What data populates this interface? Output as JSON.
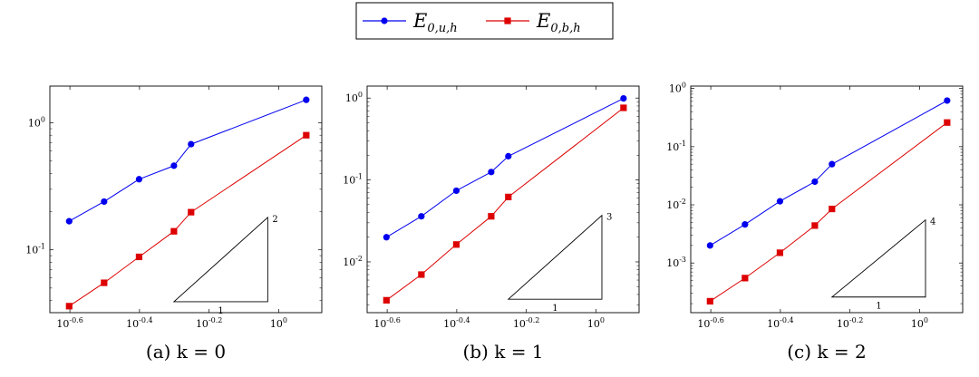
{
  "legend": [
    {
      "series": "E_u",
      "main": "E",
      "sub": "0,u,h",
      "color": "#0000ee",
      "marker": "circle"
    },
    {
      "series": "E_b",
      "main": "E",
      "sub": "0,b,h",
      "color": "#dd0000",
      "marker": "square"
    }
  ],
  "chart_data": [
    {
      "type": "line",
      "caption": "(a) k = 0",
      "x_scale": "log",
      "y_scale": "log",
      "xlim": [
        0.22,
        1.33
      ],
      "ylim": [
        0.032,
        1.95
      ],
      "x_ticks": [
        {
          "value": 0.25119,
          "label": "10^-0.6"
        },
        {
          "value": 0.39811,
          "label": "10^-0.4"
        },
        {
          "value": 0.63096,
          "label": "10^-0.2"
        },
        {
          "value": 1.0,
          "label": "10^0"
        }
      ],
      "y_ticks": [
        {
          "value": 0.1,
          "label": "10^-1"
        },
        {
          "value": 1.0,
          "label": "10^0"
        }
      ],
      "x": [
        0.25,
        0.315,
        0.397,
        0.5,
        0.56,
        1.2
      ],
      "series": [
        {
          "key": "E_u",
          "values": [
            0.168,
            0.24,
            0.36,
            0.46,
            0.68,
            1.52
          ]
        },
        {
          "key": "E_b",
          "values": [
            0.036,
            0.055,
            0.088,
            0.14,
            0.198,
            0.8
          ]
        }
      ],
      "slope_triangle": {
        "x_from": 0.5,
        "x_to": 0.93,
        "y_base": 0.039,
        "y_top": 0.18,
        "run_label": "1",
        "rise_label": "2"
      }
    },
    {
      "type": "line",
      "caption": "(b) k = 1",
      "x_scale": "log",
      "y_scale": "log",
      "xlim": [
        0.22,
        1.33
      ],
      "ylim": [
        0.0024,
        1.4
      ],
      "x_ticks": [
        {
          "value": 0.25119,
          "label": "10^-0.6"
        },
        {
          "value": 0.39811,
          "label": "10^-0.4"
        },
        {
          "value": 0.63096,
          "label": "10^-0.2"
        },
        {
          "value": 1.0,
          "label": "10^0"
        }
      ],
      "y_ticks": [
        {
          "value": 0.01,
          "label": "10^-2"
        },
        {
          "value": 0.1,
          "label": "10^-1"
        },
        {
          "value": 1.0,
          "label": "10^0"
        }
      ],
      "x": [
        0.25,
        0.315,
        0.397,
        0.5,
        0.56,
        1.2
      ],
      "series": [
        {
          "key": "E_u",
          "values": [
            0.02,
            0.036,
            0.074,
            0.125,
            0.195,
            0.99
          ]
        },
        {
          "key": "E_b",
          "values": [
            0.0034,
            0.007,
            0.0163,
            0.036,
            0.062,
            0.76
          ]
        }
      ],
      "slope_triangle": {
        "x_from": 0.56,
        "x_to": 1.04,
        "y_base": 0.0035,
        "y_top": 0.037,
        "run_label": "1",
        "rise_label": "3"
      }
    },
    {
      "type": "line",
      "caption": "(c) k = 2",
      "x_scale": "log",
      "y_scale": "log",
      "xlim": [
        0.22,
        1.33
      ],
      "ylim": [
        0.00014,
        1.1
      ],
      "x_ticks": [
        {
          "value": 0.25119,
          "label": "10^-0.6"
        },
        {
          "value": 0.39811,
          "label": "10^-0.4"
        },
        {
          "value": 0.63096,
          "label": "10^-0.2"
        },
        {
          "value": 1.0,
          "label": "10^0"
        }
      ],
      "y_ticks": [
        {
          "value": 0.001,
          "label": "10^-3"
        },
        {
          "value": 0.01,
          "label": "10^-2"
        },
        {
          "value": 0.1,
          "label": "10^-1"
        },
        {
          "value": 1.0,
          "label": "10^0"
        }
      ],
      "x": [
        0.25,
        0.315,
        0.397,
        0.5,
        0.56,
        1.2
      ],
      "series": [
        {
          "key": "E_u",
          "values": [
            0.002,
            0.0046,
            0.0115,
            0.025,
            0.05,
            0.62
          ]
        },
        {
          "key": "E_b",
          "values": [
            0.00022,
            0.00055,
            0.0015,
            0.0044,
            0.0085,
            0.26
          ]
        }
      ],
      "slope_triangle": {
        "x_from": 0.56,
        "x_to": 1.04,
        "y_base": 0.00026,
        "y_top": 0.0055,
        "run_label": "1",
        "rise_label": "4"
      }
    }
  ]
}
